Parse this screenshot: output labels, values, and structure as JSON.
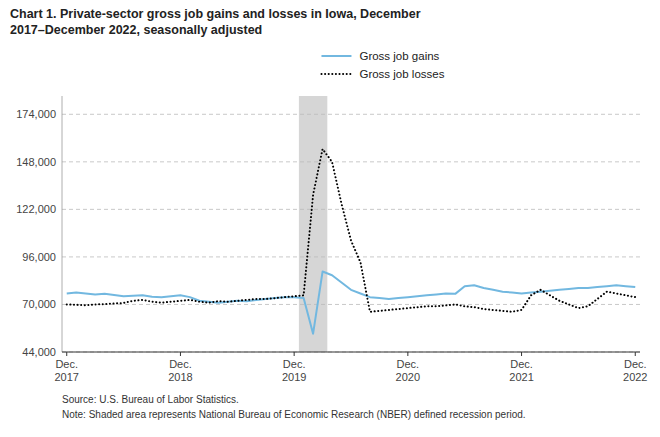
{
  "chart_data": {
    "type": "line",
    "title": "Chart 1. Private-sector gross job gains and losses in Iowa, December\n2017–December 2022, seasonally adjusted",
    "annotations": [
      "Source: U.S. Bureau of Labor Statistics.",
      "Note: Shaded area represents National Bureau of Economic Research (NBER) defined  recession period."
    ],
    "categories": [
      "Dec.\n2017",
      null,
      null,
      null,
      null,
      null,
      null,
      null,
      null,
      null,
      null,
      null,
      "Dec.\n2018",
      null,
      null,
      null,
      null,
      null,
      null,
      null,
      null,
      null,
      null,
      null,
      "Dec.\n2019",
      null,
      null,
      null,
      null,
      null,
      null,
      null,
      null,
      null,
      null,
      null,
      "Dec.\n2020",
      null,
      null,
      null,
      null,
      null,
      null,
      null,
      null,
      null,
      null,
      null,
      "Dec.\n2021",
      null,
      null,
      null,
      null,
      null,
      null,
      null,
      null,
      null,
      null,
      null,
      "Dec.\n2022"
    ],
    "series": [
      {
        "name": "Gross job gains",
        "color": "#72B8E0",
        "line_style": "solid",
        "values": [
          76000,
          76500,
          76000,
          75500,
          75800,
          75200,
          74500,
          74800,
          75000,
          74200,
          74000,
          74500,
          75000,
          74000,
          72000,
          71500,
          71000,
          71500,
          72000,
          71800,
          72500,
          73000,
          73500,
          74000,
          74000,
          73500,
          54000,
          88000,
          86000,
          82000,
          78000,
          76000,
          74000,
          73500,
          73000,
          73500,
          74000,
          74500,
          75000,
          75500,
          76000,
          75800,
          80000,
          80500,
          79000,
          78000,
          77000,
          76500,
          76000,
          76500,
          77000,
          77500,
          78000,
          78500,
          79000,
          79000,
          79500,
          80000,
          80500,
          80000,
          79500
        ]
      },
      {
        "name": "Gross job losses",
        "color": "#000000",
        "line_style": "dotted",
        "values": [
          70000,
          69800,
          69600,
          70000,
          70200,
          70500,
          70800,
          72000,
          72500,
          71500,
          71000,
          71500,
          72000,
          72500,
          71500,
          71000,
          71800,
          71500,
          72000,
          72500,
          73000,
          73000,
          73500,
          74000,
          74500,
          75000,
          130000,
          155000,
          148000,
          125000,
          105000,
          93000,
          66000,
          66500,
          67000,
          67500,
          68000,
          68500,
          69000,
          69000,
          69500,
          70000,
          69000,
          68500,
          67500,
          67000,
          66500,
          66000,
          67000,
          75000,
          78000,
          75000,
          72000,
          70000,
          68000,
          69000,
          73000,
          77000,
          76000,
          75000,
          74000
        ]
      }
    ],
    "shaded_ranges": [
      {
        "start": 25,
        "end": 28,
        "color": "#cccccc"
      }
    ],
    "ylim": [
      44000,
      184000
    ],
    "yticks": [
      {
        "value": 44000,
        "label": "44,000"
      },
      {
        "value": 70000,
        "label": "70,000"
      },
      {
        "value": 96000,
        "label": "96,000"
      },
      {
        "value": 122000,
        "label": "122,000"
      },
      {
        "value": 148000,
        "label": "148,000"
      },
      {
        "value": 174000,
        "label": "174,000"
      }
    ],
    "grid": true,
    "legend": "top"
  }
}
